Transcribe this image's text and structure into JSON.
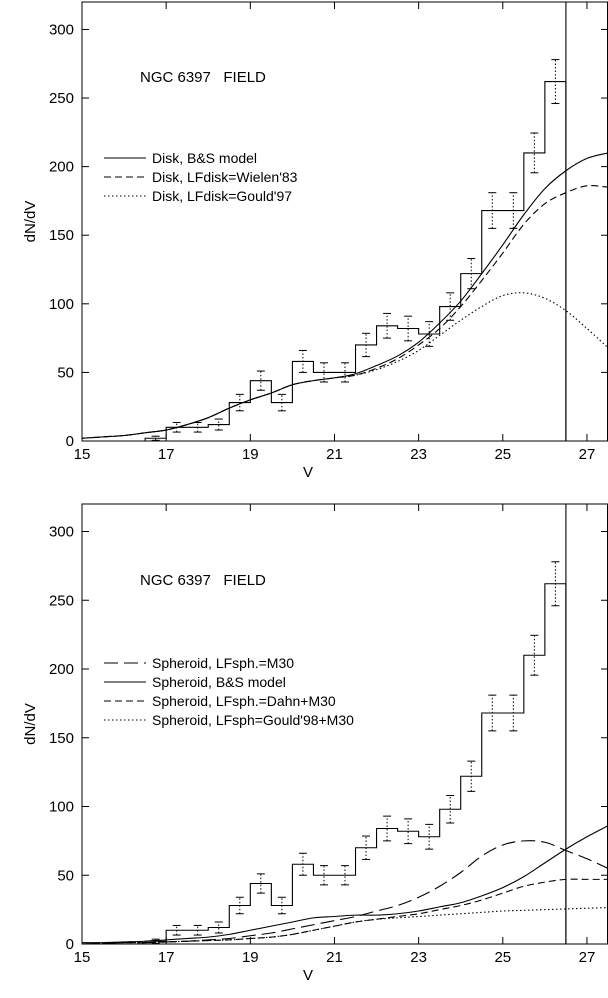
{
  "chart_data": [
    {
      "type": "line",
      "annotation": "NGC 6397   FIELD",
      "xlabel": "V",
      "ylabel": "dN/dV",
      "xlim": [
        15,
        27.5
      ],
      "ylim": [
        0,
        320
      ],
      "xticks": [
        15,
        17,
        19,
        21,
        23,
        25,
        27
      ],
      "yticks": [
        0,
        50,
        100,
        150,
        200,
        250,
        300
      ],
      "grid": false,
      "legend_position": "left",
      "histogram": {
        "bin_edges": [
          16.5,
          17.0,
          17.5,
          18.0,
          18.5,
          19.0,
          19.5,
          20.0,
          20.5,
          21.0,
          21.5,
          22.0,
          22.5,
          23.0,
          23.5,
          24.0,
          24.5,
          25.0,
          25.5,
          26.0,
          26.5
        ],
        "values": [
          2,
          10,
          10,
          12,
          28,
          44,
          28,
          58,
          50,
          50,
          70,
          84,
          82,
          78,
          98,
          122,
          168,
          168,
          210,
          262
        ],
        "errors": [
          1.5,
          3.5,
          3.5,
          4,
          6,
          7,
          6,
          8,
          7,
          7,
          8.5,
          9,
          9,
          9,
          10,
          11,
          13,
          13,
          14.5,
          16
        ],
        "cutoff_x": 26.5
      },
      "series": [
        {
          "name": "Disk, B&S model",
          "style": "solid",
          "x": [
            15.0,
            15.5,
            16.0,
            16.5,
            17.0,
            17.5,
            18.0,
            18.5,
            19.0,
            19.5,
            20.0,
            20.5,
            21.0,
            21.5,
            22.0,
            22.5,
            23.0,
            23.5,
            24.0,
            24.5,
            25.0,
            25.5,
            26.0,
            26.5,
            27.0,
            27.5
          ],
          "y": [
            2,
            3,
            4,
            6,
            8,
            12,
            17,
            24,
            30,
            35,
            41,
            44,
            46,
            49,
            55,
            62,
            72,
            86,
            102,
            122,
            143,
            165,
            184,
            197,
            206,
            210
          ]
        },
        {
          "name": "Disk, LFdisk=Wielen'83",
          "style": "dashed",
          "x": [
            15.0,
            15.5,
            16.0,
            16.5,
            17.0,
            17.5,
            18.0,
            18.5,
            19.0,
            19.5,
            20.0,
            20.5,
            21.0,
            21.5,
            22.0,
            22.5,
            23.0,
            23.5,
            24.0,
            24.5,
            25.0,
            25.5,
            26.0,
            26.5,
            27.0,
            27.5
          ],
          "y": [
            2,
            3,
            4,
            6,
            8,
            12,
            17,
            24,
            30,
            35,
            41,
            44,
            46,
            48,
            53,
            60,
            70,
            82,
            98,
            117,
            137,
            158,
            173,
            181,
            186,
            185
          ]
        },
        {
          "name": "Disk, LFdisk=Gould'97",
          "style": "dotted",
          "x": [
            15.0,
            15.5,
            16.0,
            16.5,
            17.0,
            17.5,
            18.0,
            18.5,
            19.0,
            19.5,
            20.0,
            20.5,
            21.0,
            21.5,
            22.0,
            22.5,
            23.0,
            23.5,
            24.0,
            24.5,
            25.0,
            25.5,
            26.0,
            26.5,
            27.0,
            27.5
          ],
          "y": [
            2,
            3,
            4,
            6,
            8,
            12,
            17,
            24,
            30,
            35,
            41,
            44,
            46,
            48,
            52,
            58,
            66,
            77,
            88,
            98,
            106,
            108,
            104,
            95,
            82,
            68
          ]
        }
      ]
    },
    {
      "type": "line",
      "annotation": "NGC 6397   FIELD",
      "xlabel": "V",
      "ylabel": "dN/dV",
      "xlim": [
        15,
        27.5
      ],
      "ylim": [
        0,
        320
      ],
      "xticks": [
        15,
        17,
        19,
        21,
        23,
        25,
        27
      ],
      "yticks": [
        0,
        50,
        100,
        150,
        200,
        250,
        300
      ],
      "grid": false,
      "legend_position": "left",
      "histogram": {
        "bin_edges": [
          16.5,
          17.0,
          17.5,
          18.0,
          18.5,
          19.0,
          19.5,
          20.0,
          20.5,
          21.0,
          21.5,
          22.0,
          22.5,
          23.0,
          23.5,
          24.0,
          24.5,
          25.0,
          25.5,
          26.0,
          26.5
        ],
        "values": [
          2,
          10,
          10,
          12,
          28,
          44,
          28,
          58,
          50,
          50,
          70,
          84,
          82,
          78,
          98,
          122,
          168,
          168,
          210,
          262
        ],
        "errors": [
          1.5,
          3.5,
          3.5,
          4,
          6,
          7,
          6,
          8,
          7,
          7,
          8.5,
          9,
          9,
          9,
          10,
          11,
          13,
          13,
          14.5,
          16
        ],
        "cutoff_x": 26.5
      },
      "series": [
        {
          "name": "Spheroid, LFsph.=M30",
          "style": "longdash",
          "x": [
            15.0,
            15.5,
            16.0,
            16.5,
            17.0,
            17.5,
            18.0,
            18.5,
            19.0,
            19.5,
            20.0,
            20.5,
            21.0,
            21.5,
            22.0,
            22.5,
            23.0,
            23.5,
            24.0,
            24.5,
            25.0,
            25.5,
            26.0,
            26.5,
            27.0,
            27.5
          ],
          "y": [
            0,
            0.5,
            1,
            1,
            1.5,
            2,
            3,
            4,
            6,
            8,
            11,
            14,
            17,
            20,
            24,
            28,
            34,
            42,
            52,
            64,
            72,
            75,
            74,
            68,
            62,
            55
          ]
        },
        {
          "name": "Spheroid, B&S model",
          "style": "solid",
          "x": [
            15.0,
            15.5,
            16.0,
            16.5,
            17.0,
            17.5,
            18.0,
            18.5,
            19.0,
            19.5,
            20.0,
            20.5,
            21.0,
            21.5,
            22.0,
            22.5,
            23.0,
            23.5,
            24.0,
            24.5,
            25.0,
            25.5,
            26.0,
            26.5,
            27.0,
            27.5
          ],
          "y": [
            1,
            1,
            1.5,
            2,
            3,
            4,
            5,
            7,
            10,
            13,
            16,
            19,
            20,
            21,
            21,
            22,
            24,
            27,
            30,
            35,
            41,
            49,
            59,
            69,
            78,
            86
          ]
        },
        {
          "name": "Spheroid, LFsph.=Dahn+M30",
          "style": "dashed",
          "x": [
            15.0,
            15.5,
            16.0,
            16.5,
            17.0,
            17.5,
            18.0,
            18.5,
            19.0,
            19.5,
            20.0,
            20.5,
            21.0,
            21.5,
            22.0,
            22.5,
            23.0,
            23.5,
            24.0,
            24.5,
            25.0,
            25.5,
            26.0,
            26.5,
            27.0,
            27.5
          ],
          "y": [
            0,
            0.5,
            1,
            1,
            1.5,
            2,
            2.5,
            3,
            4,
            5,
            7,
            10,
            13,
            16,
            18,
            20,
            22,
            25,
            28,
            32,
            37,
            42,
            45,
            47,
            47,
            47
          ]
        },
        {
          "name": "Spheroid, LFsph=Gould'98+M30",
          "style": "dotted",
          "x": [
            15.0,
            15.5,
            16.0,
            16.5,
            17.0,
            17.5,
            18.0,
            18.5,
            19.0,
            19.5,
            20.0,
            20.5,
            21.0,
            21.5,
            22.0,
            22.5,
            23.0,
            23.5,
            24.0,
            24.5,
            25.0,
            25.5,
            26.0,
            26.5,
            27.0,
            27.5
          ],
          "y": [
            0,
            0.5,
            1,
            1,
            1.5,
            2,
            2.5,
            3,
            4,
            5,
            7,
            10,
            13,
            16,
            18,
            19,
            20,
            21,
            22,
            23,
            24,
            24.5,
            25,
            25.5,
            26,
            26.5
          ]
        }
      ]
    }
  ]
}
